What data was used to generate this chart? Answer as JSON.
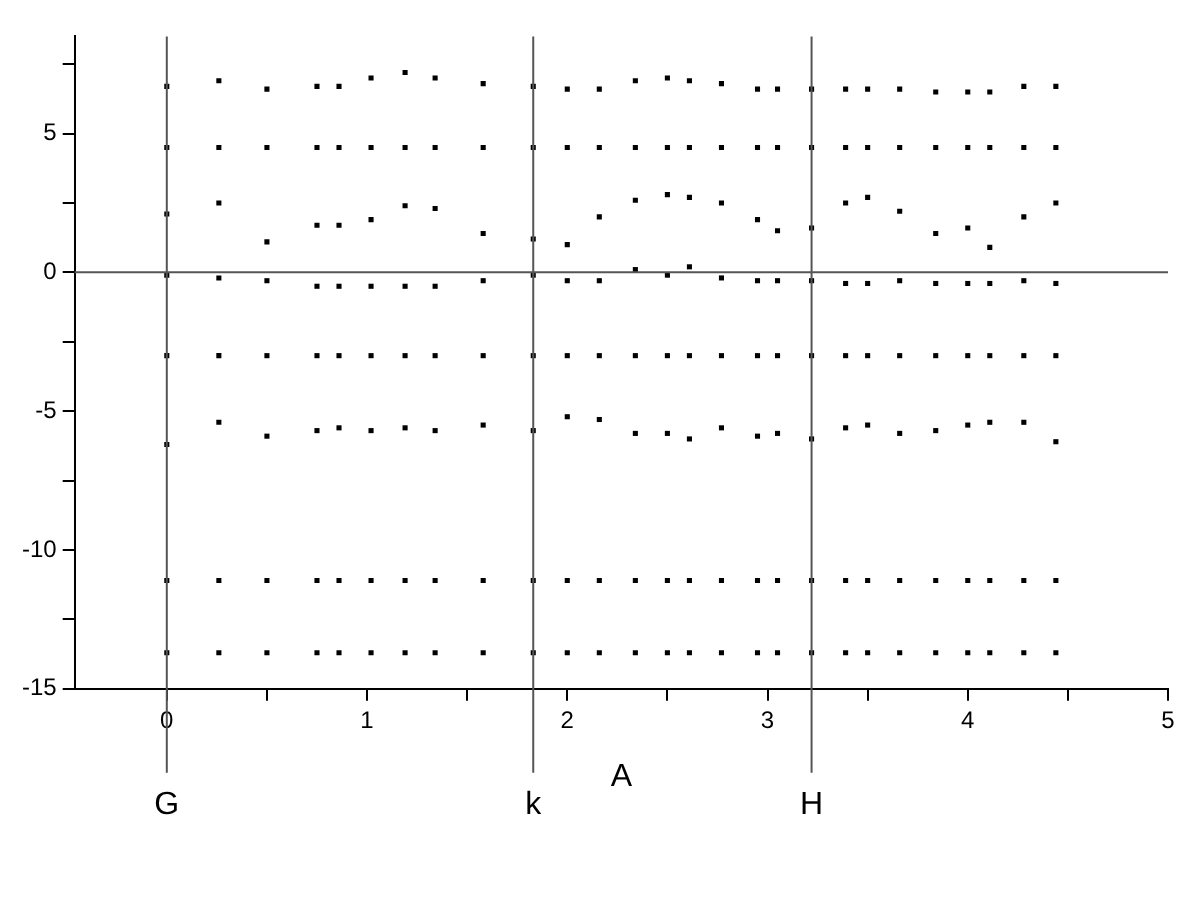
{
  "chart_data": {
    "type": "scatter",
    "xlabel": "A",
    "x": [
      0,
      0,
      0,
      0,
      0,
      0,
      0,
      0,
      0.26,
      0.26,
      0.26,
      0.26,
      0.26,
      0.26,
      0.26,
      0.26,
      0.5,
      0.5,
      0.5,
      0.5,
      0.5,
      0.5,
      0.5,
      0.5,
      0.75,
      0.75,
      0.75,
      0.75,
      0.75,
      0.75,
      0.75,
      0.75,
      0.86,
      0.86,
      0.86,
      0.86,
      0.86,
      0.86,
      0.86,
      0.86,
      1.02,
      1.02,
      1.02,
      1.02,
      1.02,
      1.02,
      1.02,
      1.02,
      1.19,
      1.19,
      1.19,
      1.19,
      1.19,
      1.19,
      1.19,
      1.19,
      1.34,
      1.34,
      1.34,
      1.34,
      1.34,
      1.34,
      1.34,
      1.34,
      1.58,
      1.58,
      1.58,
      1.58,
      1.58,
      1.58,
      1.58,
      1.58,
      1.83,
      1.83,
      1.83,
      1.83,
      1.83,
      1.83,
      1.83,
      1.83,
      2.0,
      2.0,
      2.0,
      2.0,
      2.0,
      2.0,
      2.0,
      2.0,
      2.16,
      2.16,
      2.16,
      2.16,
      2.16,
      2.16,
      2.16,
      2.16,
      2.34,
      2.34,
      2.34,
      2.34,
      2.34,
      2.34,
      2.34,
      2.34,
      2.5,
      2.5,
      2.5,
      2.5,
      2.5,
      2.5,
      2.5,
      2.5,
      2.61,
      2.61,
      2.61,
      2.61,
      2.61,
      2.61,
      2.61,
      2.61,
      2.77,
      2.77,
      2.77,
      2.77,
      2.77,
      2.77,
      2.77,
      2.77,
      2.95,
      2.95,
      2.95,
      2.95,
      2.95,
      2.95,
      2.95,
      2.95,
      3.05,
      3.05,
      3.05,
      3.05,
      3.05,
      3.05,
      3.05,
      3.05,
      3.22,
      3.22,
      3.22,
      3.22,
      3.22,
      3.22,
      3.22,
      3.22,
      3.39,
      3.39,
      3.39,
      3.39,
      3.39,
      3.39,
      3.39,
      3.39,
      3.5,
      3.5,
      3.5,
      3.5,
      3.5,
      3.5,
      3.5,
      3.5,
      3.66,
      3.66,
      3.66,
      3.66,
      3.66,
      3.66,
      3.66,
      3.66,
      3.84,
      3.84,
      3.84,
      3.84,
      3.84,
      3.84,
      3.84,
      3.84,
      4.0,
      4.0,
      4.0,
      4.0,
      4.0,
      4.0,
      4.0,
      4.0,
      4.11,
      4.11,
      4.11,
      4.11,
      4.11,
      4.11,
      4.11,
      4.11,
      4.28,
      4.28,
      4.28,
      4.28,
      4.28,
      4.28,
      4.28,
      4.28,
      4.44,
      4.44,
      4.44,
      4.44,
      4.44,
      4.44,
      4.44,
      4.44
    ],
    "series": [
      {
        "color": "#000000",
        "values": [
          6.7,
          4.5,
          2.1,
          -0.1,
          -3,
          -6.2,
          -11.1,
          -13.7,
          6.9,
          4.5,
          2.5,
          -0.2,
          -3,
          -5.4,
          -11.1,
          -13.7,
          6.6,
          4.5,
          1.1,
          -0.3,
          -3,
          -5.9,
          -11.1,
          -13.7,
          6.7,
          4.5,
          1.7,
          -0.5,
          -3,
          -5.7,
          -11.1,
          -13.7,
          6.7,
          4.5,
          1.7,
          -0.5,
          -3,
          -5.6,
          -11.1,
          -13.7,
          7.0,
          4.5,
          1.9,
          -0.5,
          -3,
          -5.7,
          -11.1,
          -13.7,
          7.2,
          4.5,
          2.4,
          -0.5,
          -3,
          -5.6,
          -11.1,
          -13.7,
          7.0,
          4.5,
          2.3,
          -0.5,
          -3,
          -5.7,
          -11.1,
          -13.7,
          6.8,
          4.5,
          1.4,
          -0.3,
          -3,
          -5.5,
          -11.1,
          -13.7,
          6.7,
          4.5,
          1.2,
          -0.1,
          -3,
          -5.7,
          -11.1,
          -13.7,
          6.6,
          4.5,
          1.0,
          -0.3,
          -3,
          -5.2,
          -11.1,
          -13.7,
          6.6,
          4.5,
          2.0,
          -0.3,
          -3,
          -5.3,
          -11.1,
          -13.7,
          6.9,
          4.5,
          2.6,
          0.1,
          -3,
          -5.8,
          -11.1,
          -13.7,
          7.0,
          4.5,
          2.8,
          -0.1,
          -3,
          -5.8,
          -11.1,
          -13.7,
          6.9,
          4.5,
          2.7,
          0.2,
          -3,
          -6.0,
          -11.1,
          -13.7,
          6.8,
          4.5,
          2.5,
          -0.2,
          -3,
          -5.6,
          -11.1,
          -13.7,
          6.6,
          4.5,
          1.9,
          -0.3,
          -3,
          -5.9,
          -11.1,
          -13.7,
          6.6,
          4.5,
          1.5,
          -0.3,
          -3,
          -5.8,
          -11.1,
          -13.7,
          6.6,
          4.5,
          1.6,
          -0.3,
          -3,
          -6.0,
          -11.1,
          -13.7,
          6.6,
          4.5,
          2.5,
          -0.4,
          -3,
          -5.6,
          -11.1,
          -13.7,
          6.6,
          4.5,
          2.7,
          -0.4,
          -3,
          -5.5,
          -11.1,
          -13.7,
          6.6,
          4.5,
          2.2,
          -0.3,
          -3,
          -5.8,
          -11.1,
          -13.7,
          6.5,
          4.5,
          1.4,
          -0.4,
          -3,
          -5.7,
          -11.1,
          -13.7,
          6.5,
          4.5,
          1.6,
          -0.4,
          -3,
          -5.5,
          -11.1,
          -13.7,
          6.5,
          4.5,
          0.9,
          -0.4,
          -3,
          -5.4,
          -11.1,
          -13.7,
          6.7,
          4.5,
          2.0,
          -0.3,
          -3,
          -5.4,
          -11.1,
          -13.7,
          6.7,
          4.5,
          2.5,
          -0.4,
          -3,
          -6.1,
          -11.1,
          -13.7
        ]
      }
    ],
    "marker": "square",
    "xlim": [
      -0.46,
      5
    ],
    "xticks": [
      0,
      {
        "value": 0.5,
        "label": null
      },
      1,
      {
        "value": 1.5,
        "label": null
      },
      2,
      {
        "value": 2.5,
        "label": null
      },
      3,
      {
        "value": 3.5,
        "label": null
      },
      4,
      {
        "value": 4.5,
        "label": null
      },
      5
    ],
    "ylim": [
      -15,
      8.5
    ],
    "yticks": [
      -15,
      {
        "value": -12.5,
        "label": null
      },
      -10,
      {
        "value": -7.5,
        "label": null
      },
      -5,
      {
        "value": -2.5,
        "label": null
      },
      0,
      {
        "value": 2.5,
        "label": null
      },
      5,
      {
        "value": 7.5,
        "label": null
      }
    ],
    "grid": false,
    "legend": false,
    "ref_lines": [
      {
        "axis": "x",
        "value": 0,
        "label": "G",
        "color": "#555555"
      },
      {
        "axis": "x",
        "value": 1.83,
        "label": "k",
        "color": "#555555"
      },
      {
        "axis": "x",
        "value": 3.22,
        "label": "H",
        "color": "#555555"
      },
      {
        "axis": "y",
        "value": 0,
        "label": null,
        "color": "#555555"
      }
    ]
  }
}
